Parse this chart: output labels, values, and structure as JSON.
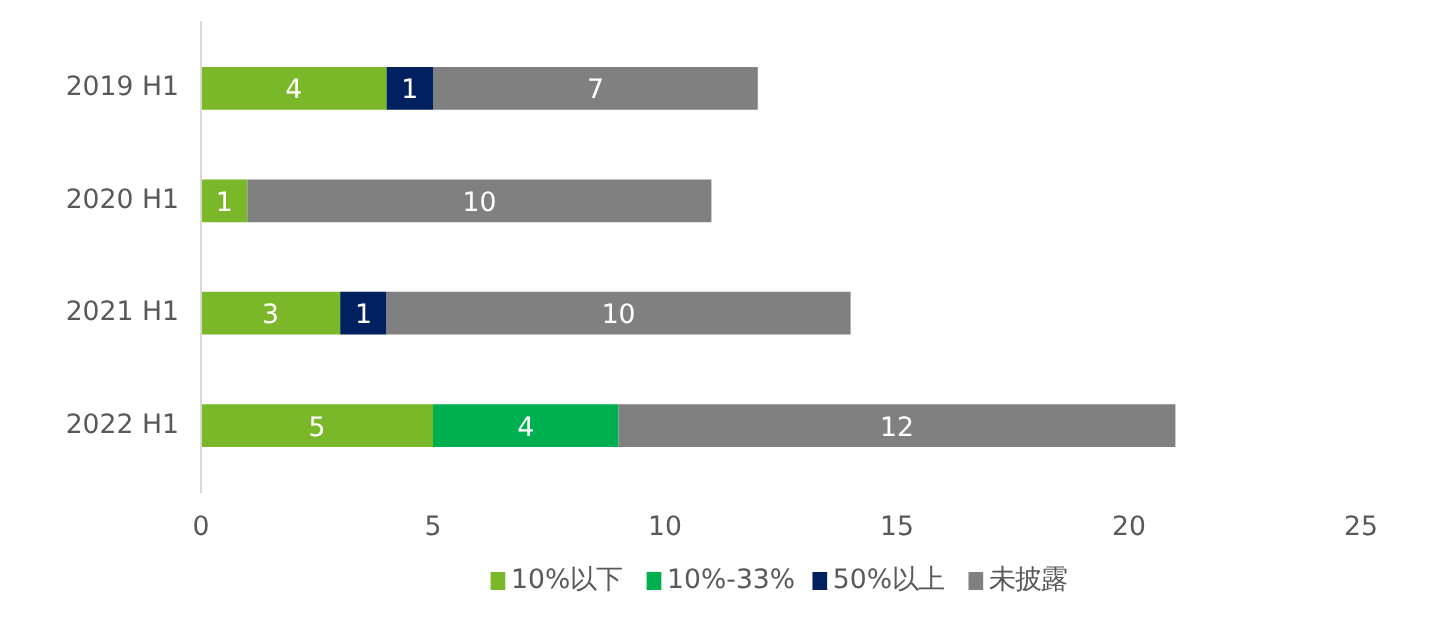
{
  "chart_data": {
    "type": "bar",
    "orientation": "horizontal",
    "stacked": true,
    "categories": [
      "2019 H1",
      "2020 H1",
      "2021 H1",
      "2022 H1"
    ],
    "series": [
      {
        "name": "10%以下",
        "color": "#7ab829",
        "values": [
          4,
          1,
          3,
          5
        ]
      },
      {
        "name": "10%-33%",
        "color": "#00b050",
        "values": [
          null,
          null,
          null,
          4
        ]
      },
      {
        "name": "50%以上",
        "color": "#002060",
        "values": [
          1,
          null,
          1,
          null
        ]
      },
      {
        "name": "未披露",
        "color": "#808080",
        "values": [
          7,
          10,
          10,
          12
        ]
      }
    ],
    "xlim": [
      0,
      25
    ],
    "xticks": [
      0,
      5,
      10,
      15,
      20,
      25
    ],
    "grid": false,
    "legend": "bottom",
    "data_labels": true
  }
}
